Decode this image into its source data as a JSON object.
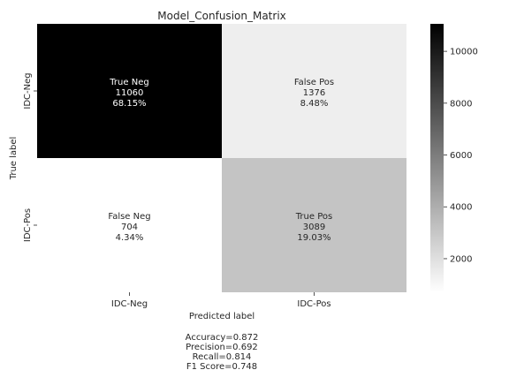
{
  "chart_data": {
    "type": "heatmap",
    "title": "Model_Confusion_Matrix",
    "xlabel": "Predicted label",
    "ylabel": "True label",
    "x_categories": [
      "IDC-Neg",
      "IDC-Pos"
    ],
    "y_categories": [
      "IDC-Neg",
      "IDC-Pos"
    ],
    "cells": [
      [
        {
          "name": "True Neg",
          "value": 11060,
          "percent": "68.15%"
        },
        {
          "name": "False Pos",
          "value": 1376,
          "percent": "8.48%"
        }
      ],
      [
        {
          "name": "False Neg",
          "value": 704,
          "percent": "4.34%"
        },
        {
          "name": "True Pos",
          "value": 3089,
          "percent": "19.03%"
        }
      ]
    ],
    "colorbar": {
      "colormap": "binary",
      "vmin": 704,
      "vmax": 11060,
      "ticks": [
        2000,
        4000,
        6000,
        8000,
        10000
      ]
    },
    "stats": [
      "Accuracy=0.872",
      "Precision=0.692",
      "Recall=0.814",
      "F1 Score=0.748"
    ]
  }
}
